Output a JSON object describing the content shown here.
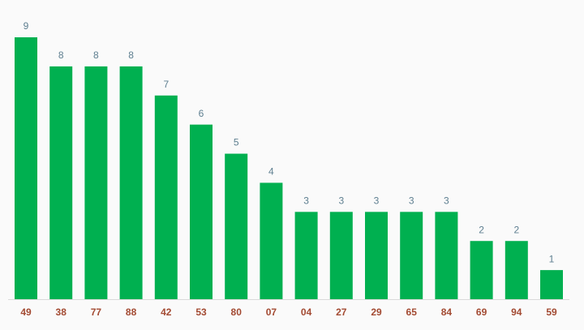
{
  "chart_data": {
    "type": "bar",
    "categories": [
      "49",
      "38",
      "77",
      "88",
      "42",
      "53",
      "80",
      "07",
      "04",
      "27",
      "29",
      "65",
      "84",
      "69",
      "94",
      "59"
    ],
    "values": [
      9,
      8,
      8,
      8,
      7,
      6,
      5,
      4,
      3,
      3,
      3,
      3,
      3,
      2,
      2,
      1
    ],
    "color": "#00b050",
    "ylim": [
      0,
      9
    ]
  }
}
